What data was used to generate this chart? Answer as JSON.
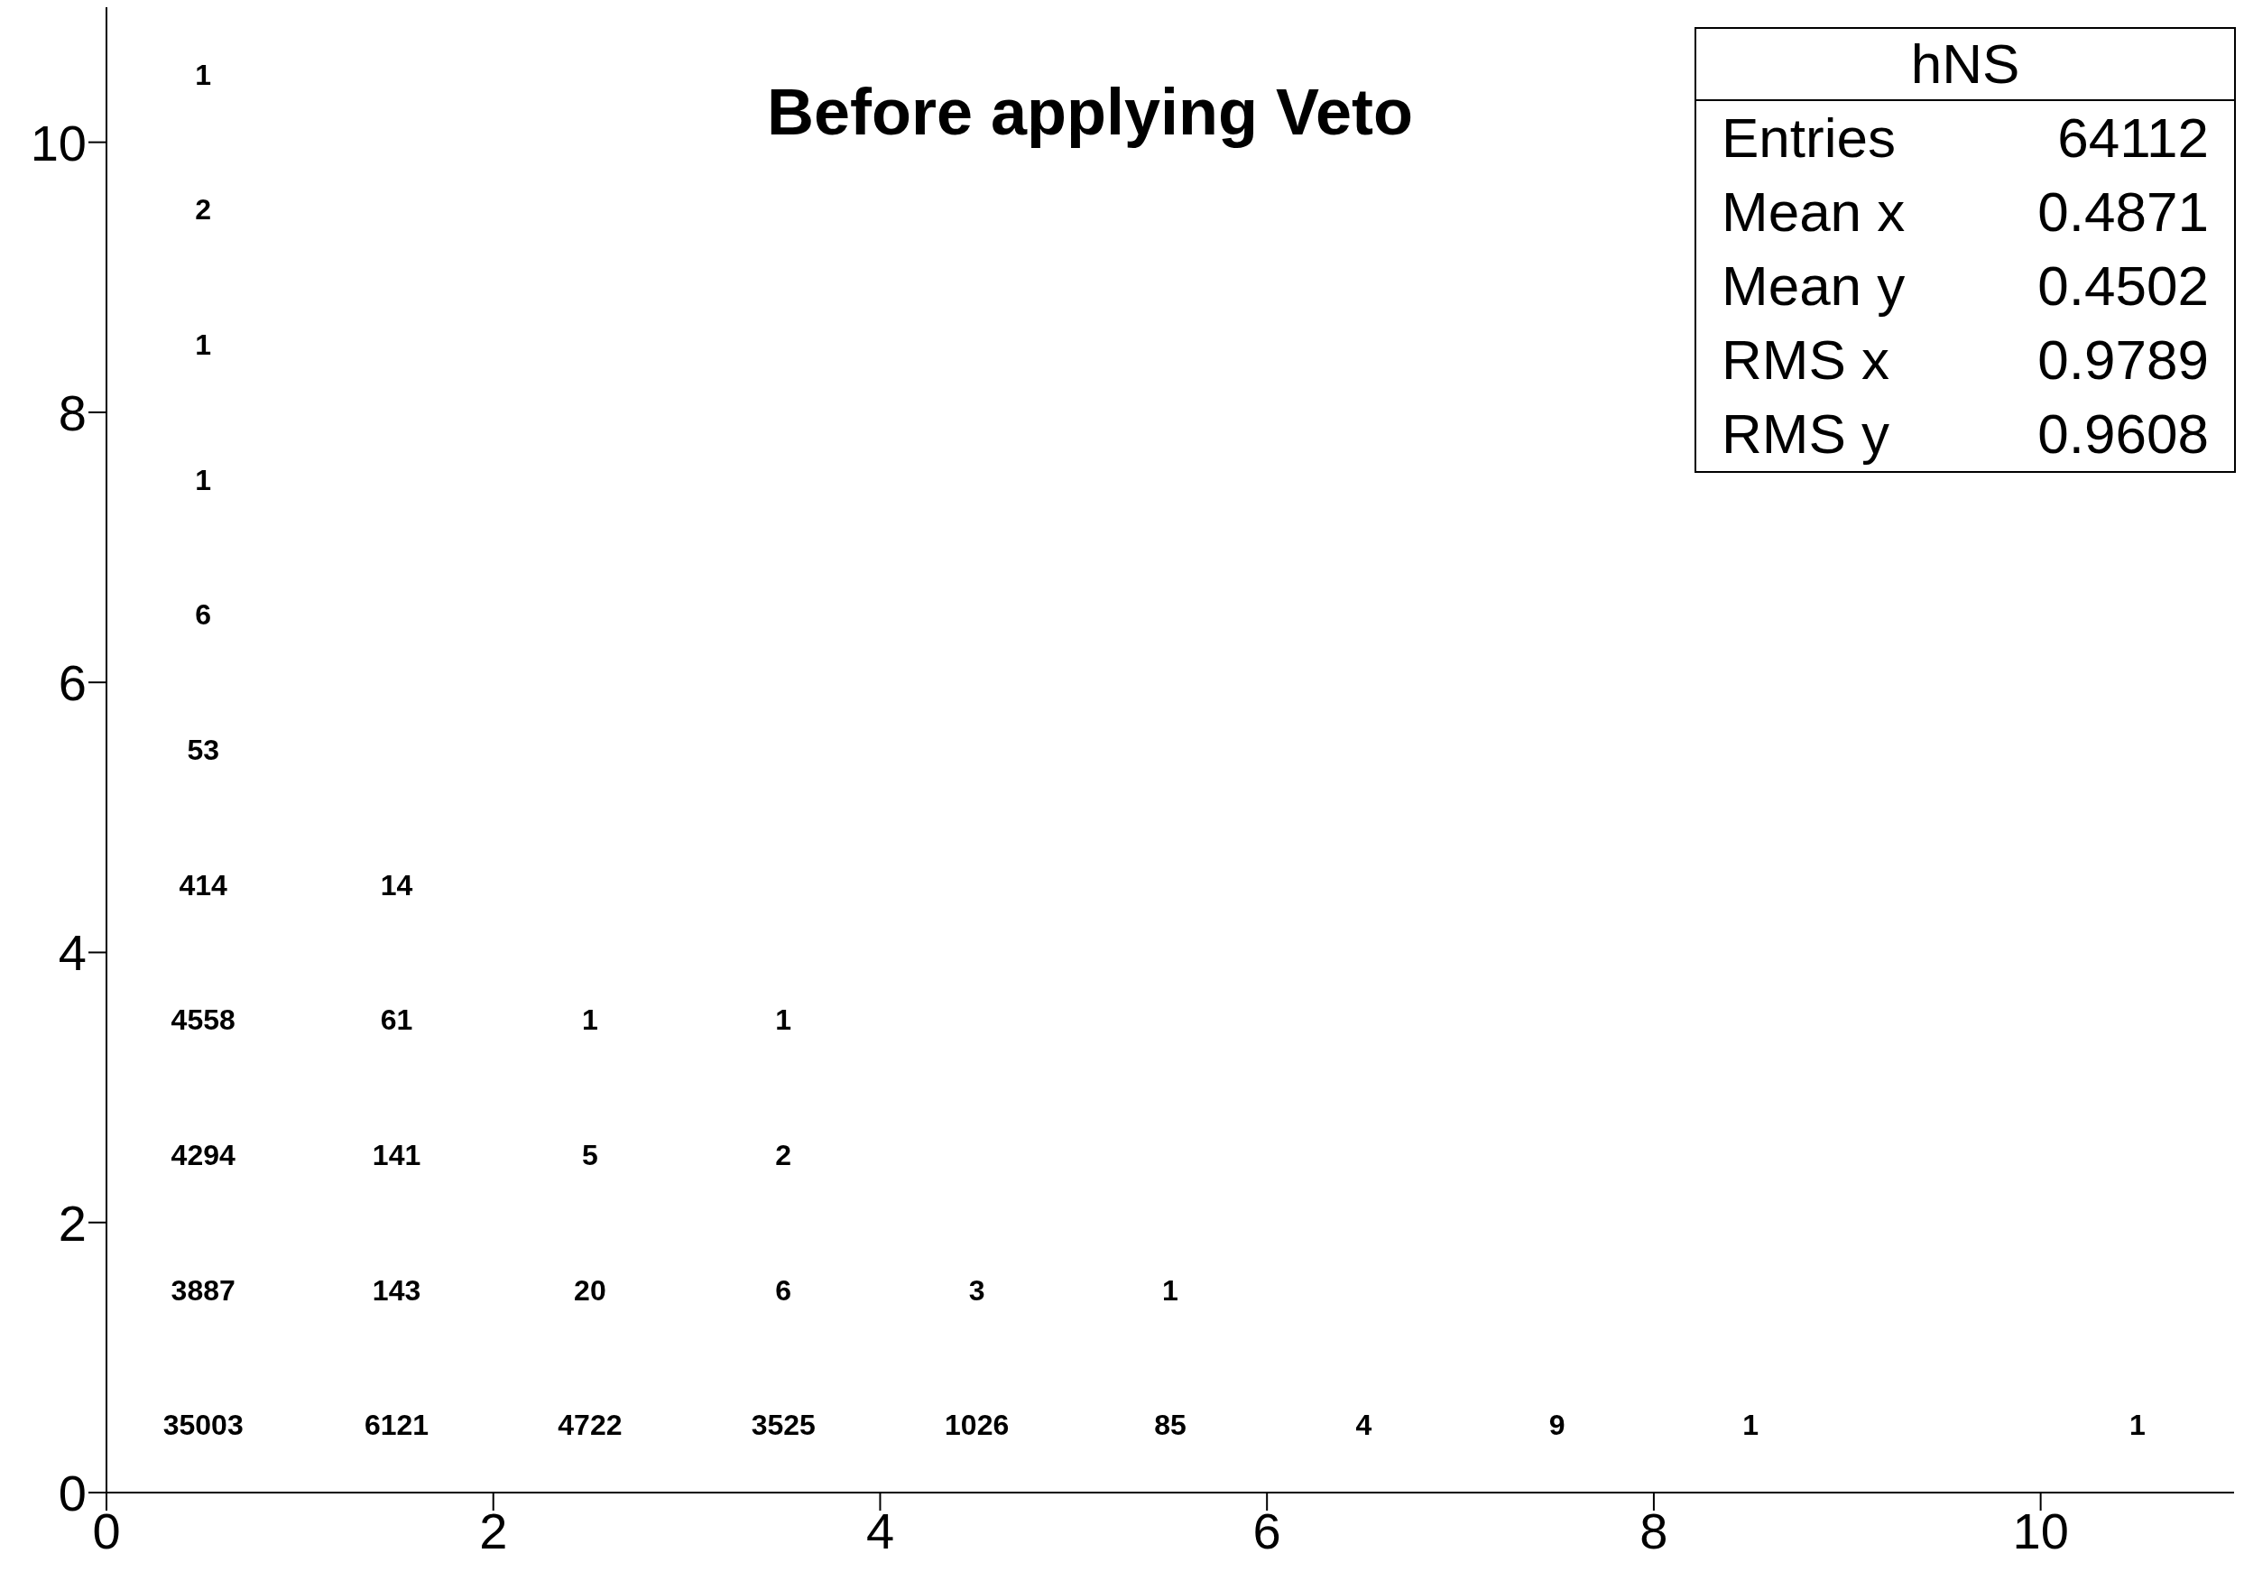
{
  "chart_data": {
    "type": "heatmap",
    "title": "Before applying Veto",
    "x": [
      0.5,
      1.5,
      2.5,
      3.5,
      4.5,
      5.5,
      6.5,
      7.5,
      8.5,
      9.5,
      10.5
    ],
    "y": [
      10.5,
      9.5,
      8.5,
      7.5,
      6.5,
      5.5,
      4.5,
      3.5,
      2.5,
      1.5,
      0.5
    ],
    "cells": [
      [
        1,
        null,
        null,
        null,
        null,
        null,
        null,
        null,
        null,
        null,
        null
      ],
      [
        2,
        null,
        null,
        null,
        null,
        null,
        null,
        null,
        null,
        null,
        null
      ],
      [
        1,
        null,
        null,
        null,
        null,
        null,
        null,
        null,
        null,
        null,
        null
      ],
      [
        1,
        null,
        null,
        null,
        null,
        null,
        null,
        null,
        null,
        null,
        null
      ],
      [
        6,
        null,
        null,
        null,
        null,
        null,
        null,
        null,
        null,
        null,
        null
      ],
      [
        53,
        null,
        null,
        null,
        null,
        null,
        null,
        null,
        null,
        null,
        null
      ],
      [
        414,
        14,
        null,
        null,
        null,
        null,
        null,
        null,
        null,
        null,
        null
      ],
      [
        4558,
        61,
        1,
        1,
        null,
        null,
        null,
        null,
        null,
        null,
        null
      ],
      [
        4294,
        141,
        5,
        2,
        null,
        null,
        null,
        null,
        null,
        null,
        null
      ],
      [
        3887,
        143,
        20,
        6,
        3,
        1,
        null,
        null,
        null,
        null,
        null
      ],
      [
        35003,
        6121,
        4722,
        3525,
        1026,
        85,
        4,
        9,
        1,
        null,
        1
      ]
    ],
    "data_labels": true,
    "xlim": [
      0,
      11
    ],
    "xticks": [
      0,
      2,
      4,
      6,
      8,
      10
    ],
    "ylim": [
      0,
      11
    ],
    "yticks": [
      0,
      2,
      4,
      6,
      8,
      10
    ],
    "grid": false,
    "annotations": [
      "hNS",
      "Entries",
      "64112",
      "Mean x",
      "0.4871",
      "Mean y",
      "0.4502",
      "RMS x",
      "0.9789",
      "RMS y",
      "0.9608"
    ]
  }
}
